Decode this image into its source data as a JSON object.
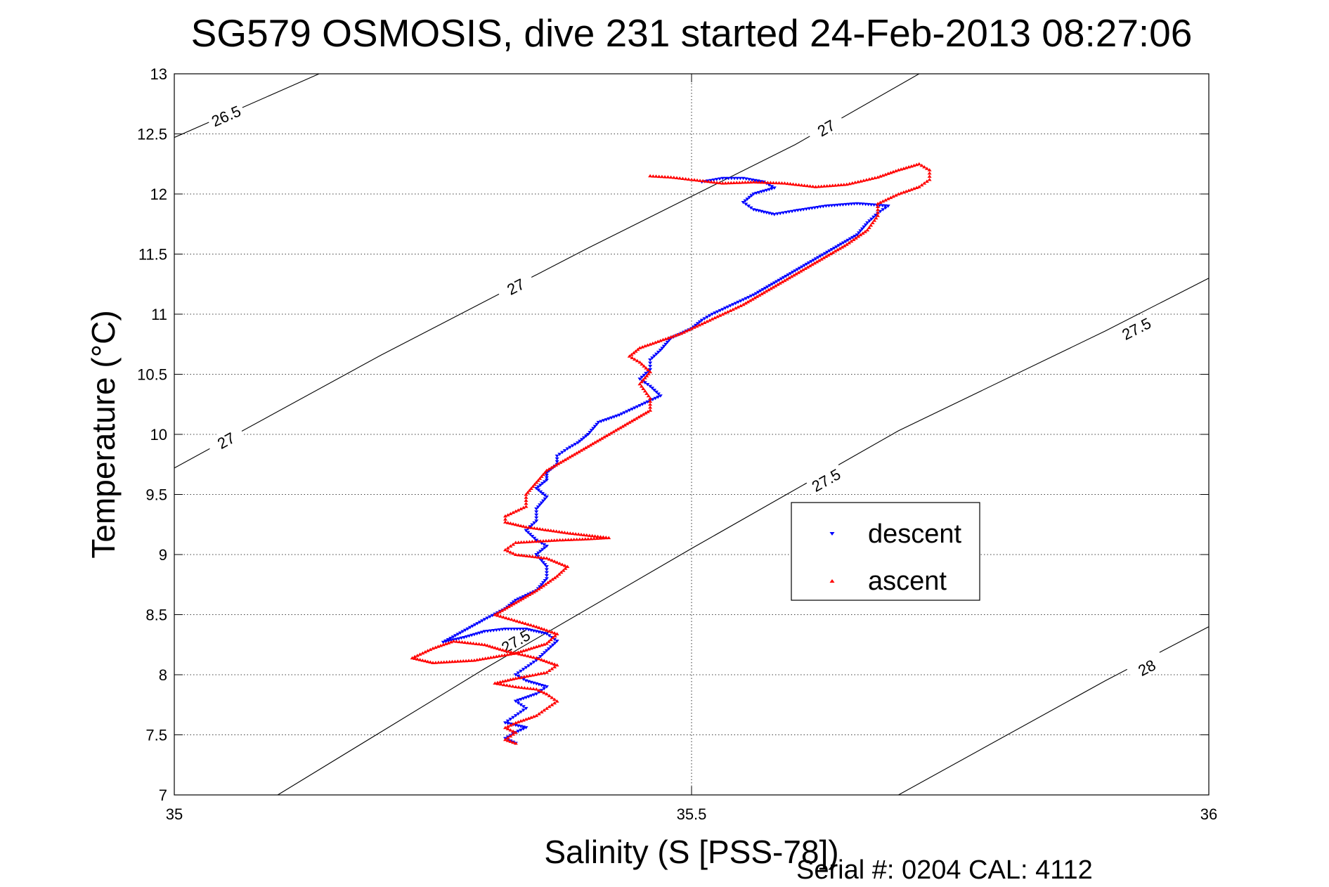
{
  "chart_data": {
    "type": "scatter",
    "title": "SG579 OSMOSIS, dive 231 started 24-Feb-2013 08:27:06",
    "xlabel": "Salinity (S [PSS-78])",
    "ylabel": "Temperature (°C)",
    "xlim": [
      35,
      36
    ],
    "ylim": [
      7,
      13
    ],
    "xticks": [
      35,
      35.5,
      36
    ],
    "xtick_labels": [
      "35",
      "35.5",
      "36"
    ],
    "yticks": [
      7,
      7.5,
      8,
      8.5,
      9,
      9.5,
      10,
      10.5,
      11,
      11.5,
      12,
      12.5,
      13
    ],
    "ytick_labels": [
      "7",
      "7.5",
      "8",
      "8.5",
      "9",
      "9.5",
      "10",
      "10.5",
      "11",
      "11.5",
      "12",
      "12.5",
      "13"
    ],
    "grid": true,
    "legend_position": "center-right",
    "footer": "Serial #: 0204  CAL: 4112",
    "density_contours": [
      {
        "label": "26.5",
        "points": [
          [
            35.0,
            12.47
          ],
          [
            35.14,
            13.0
          ]
        ],
        "labels_at": [
          [
            35.05,
            12.65
          ]
        ]
      },
      {
        "label": "27",
        "points": [
          [
            35.0,
            9.72
          ],
          [
            35.2,
            10.66
          ],
          [
            35.4,
            11.55
          ],
          [
            35.6,
            12.41
          ],
          [
            35.72,
            13.0
          ]
        ],
        "labels_at": [
          [
            35.05,
            9.95
          ],
          [
            35.33,
            11.23
          ],
          [
            35.63,
            12.55
          ]
        ]
      },
      {
        "label": "27.5",
        "points": [
          [
            35.1,
            7.0
          ],
          [
            35.3,
            8.05
          ],
          [
            35.5,
            9.05
          ],
          [
            35.7,
            10.03
          ],
          [
            35.9,
            10.86
          ],
          [
            36.0,
            11.3
          ]
        ],
        "labels_at": [
          [
            35.33,
            8.28
          ],
          [
            35.63,
            9.62
          ],
          [
            35.93,
            10.88
          ]
        ]
      },
      {
        "label": "28",
        "points": [
          [
            35.7,
            7.0
          ],
          [
            35.9,
            7.95
          ],
          [
            36.0,
            8.4
          ]
        ],
        "labels_at": [
          [
            35.94,
            8.06
          ]
        ]
      }
    ],
    "series": [
      {
        "name": "descent",
        "color": "#0000ff",
        "marker": "triangle-down",
        "points": [
          [
            35.33,
            7.43
          ],
          [
            35.32,
            7.47
          ],
          [
            35.33,
            7.52
          ],
          [
            35.34,
            7.56
          ],
          [
            35.32,
            7.6
          ],
          [
            35.33,
            7.66
          ],
          [
            35.34,
            7.72
          ],
          [
            35.33,
            7.78
          ],
          [
            35.35,
            7.84
          ],
          [
            35.36,
            7.9
          ],
          [
            35.34,
            7.95
          ],
          [
            35.33,
            8.0
          ],
          [
            35.34,
            8.06
          ],
          [
            35.35,
            8.12
          ],
          [
            35.36,
            8.2
          ],
          [
            35.37,
            8.28
          ],
          [
            35.36,
            8.34
          ],
          [
            35.34,
            8.38
          ],
          [
            35.32,
            8.38
          ],
          [
            35.3,
            8.36
          ],
          [
            35.28,
            8.31
          ],
          [
            35.26,
            8.27
          ],
          [
            35.3,
            8.46
          ],
          [
            35.32,
            8.55
          ],
          [
            35.33,
            8.62
          ],
          [
            35.35,
            8.7
          ],
          [
            35.36,
            8.8
          ],
          [
            35.36,
            8.9
          ],
          [
            35.35,
            9.0
          ],
          [
            35.36,
            9.07
          ],
          [
            35.35,
            9.12
          ],
          [
            35.34,
            9.2
          ],
          [
            35.35,
            9.28
          ],
          [
            35.35,
            9.38
          ],
          [
            35.36,
            9.48
          ],
          [
            35.35,
            9.55
          ],
          [
            35.36,
            9.62
          ],
          [
            35.36,
            9.68
          ],
          [
            35.37,
            9.75
          ],
          [
            35.37,
            9.82
          ],
          [
            35.38,
            9.88
          ],
          [
            35.39,
            9.93
          ],
          [
            35.4,
            10.0
          ],
          [
            35.41,
            10.1
          ],
          [
            35.43,
            10.16
          ],
          [
            35.45,
            10.24
          ],
          [
            35.47,
            10.32
          ],
          [
            35.46,
            10.4
          ],
          [
            35.45,
            10.46
          ],
          [
            35.46,
            10.54
          ],
          [
            35.46,
            10.62
          ],
          [
            35.47,
            10.7
          ],
          [
            35.48,
            10.8
          ],
          [
            35.5,
            10.88
          ],
          [
            35.51,
            10.95
          ],
          [
            35.52,
            11.0
          ],
          [
            35.54,
            11.08
          ],
          [
            35.56,
            11.16
          ],
          [
            35.58,
            11.26
          ],
          [
            35.6,
            11.36
          ],
          [
            35.62,
            11.46
          ],
          [
            35.64,
            11.56
          ],
          [
            35.66,
            11.66
          ],
          [
            35.67,
            11.76
          ],
          [
            35.68,
            11.84
          ],
          [
            35.69,
            11.9
          ],
          [
            35.66,
            11.92
          ],
          [
            35.63,
            11.9
          ],
          [
            35.6,
            11.86
          ],
          [
            35.58,
            11.83
          ],
          [
            35.56,
            11.87
          ],
          [
            35.55,
            11.93
          ],
          [
            35.56,
            12.0
          ],
          [
            35.58,
            12.05
          ],
          [
            35.57,
            12.1
          ],
          [
            35.55,
            12.13
          ],
          [
            35.53,
            12.13
          ],
          [
            35.51,
            12.1
          ]
        ]
      },
      {
        "name": "ascent",
        "color": "#ff0000",
        "marker": "triangle-up",
        "points": [
          [
            35.33,
            7.43
          ],
          [
            35.32,
            7.46
          ],
          [
            35.33,
            7.52
          ],
          [
            35.32,
            7.56
          ],
          [
            35.33,
            7.6
          ],
          [
            35.35,
            7.66
          ],
          [
            35.36,
            7.72
          ],
          [
            35.37,
            7.78
          ],
          [
            35.36,
            7.84
          ],
          [
            35.35,
            7.88
          ],
          [
            35.33,
            7.9
          ],
          [
            35.31,
            7.93
          ],
          [
            35.33,
            7.97
          ],
          [
            35.36,
            8.02
          ],
          [
            35.37,
            8.08
          ],
          [
            35.35,
            8.14
          ],
          [
            35.32,
            8.2
          ],
          [
            35.3,
            8.25
          ],
          [
            35.27,
            8.28
          ],
          [
            35.25,
            8.22
          ],
          [
            35.23,
            8.14
          ],
          [
            35.25,
            8.1
          ],
          [
            35.29,
            8.12
          ],
          [
            35.33,
            8.18
          ],
          [
            35.36,
            8.26
          ],
          [
            35.37,
            8.34
          ],
          [
            35.35,
            8.4
          ],
          [
            35.31,
            8.5
          ],
          [
            35.33,
            8.6
          ],
          [
            35.35,
            8.7
          ],
          [
            35.37,
            8.82
          ],
          [
            35.38,
            8.9
          ],
          [
            35.36,
            8.97
          ],
          [
            35.33,
            9.0
          ],
          [
            35.32,
            9.04
          ],
          [
            35.33,
            9.1
          ],
          [
            35.37,
            9.12
          ],
          [
            35.4,
            9.13
          ],
          [
            35.42,
            9.14
          ],
          [
            35.38,
            9.18
          ],
          [
            35.34,
            9.23
          ],
          [
            35.32,
            9.27
          ],
          [
            35.32,
            9.32
          ],
          [
            35.34,
            9.4
          ],
          [
            35.34,
            9.5
          ],
          [
            35.35,
            9.6
          ],
          [
            35.36,
            9.7
          ],
          [
            35.38,
            9.8
          ],
          [
            35.4,
            9.9
          ],
          [
            35.42,
            10.0
          ],
          [
            35.44,
            10.1
          ],
          [
            35.46,
            10.2
          ],
          [
            35.46,
            10.3
          ],
          [
            35.45,
            10.42
          ],
          [
            35.46,
            10.52
          ],
          [
            35.45,
            10.6
          ],
          [
            35.44,
            10.65
          ],
          [
            35.45,
            10.72
          ],
          [
            35.47,
            10.78
          ],
          [
            35.49,
            10.84
          ],
          [
            35.51,
            10.92
          ],
          [
            35.53,
            11.0
          ],
          [
            35.55,
            11.08
          ],
          [
            35.57,
            11.18
          ],
          [
            35.59,
            11.28
          ],
          [
            35.61,
            11.38
          ],
          [
            35.63,
            11.48
          ],
          [
            35.65,
            11.58
          ],
          [
            35.67,
            11.7
          ],
          [
            35.68,
            11.82
          ],
          [
            35.68,
            11.92
          ],
          [
            35.7,
            12.0
          ],
          [
            35.72,
            12.06
          ],
          [
            35.73,
            12.12
          ],
          [
            35.73,
            12.2
          ],
          [
            35.72,
            12.25
          ],
          [
            35.7,
            12.2
          ],
          [
            35.68,
            12.14
          ],
          [
            35.65,
            12.08
          ],
          [
            35.62,
            12.06
          ],
          [
            35.59,
            12.09
          ],
          [
            35.56,
            12.1
          ],
          [
            35.53,
            12.09
          ],
          [
            35.5,
            12.12
          ],
          [
            35.48,
            12.14
          ],
          [
            35.46,
            12.15
          ]
        ]
      }
    ]
  }
}
